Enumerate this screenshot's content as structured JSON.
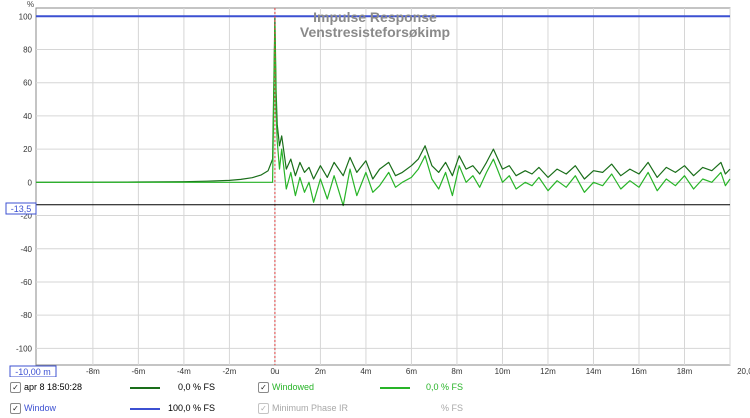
{
  "chart_data": {
    "type": "line",
    "title": "Impulse Response",
    "subtitle": "Venstresisteforsøkimp",
    "ylabel": "%",
    "xlabel": "s",
    "xlim": [
      -0.0105,
      0.02
    ],
    "ylim": [
      -110,
      105
    ],
    "grid": true,
    "x_ticks": [
      -0.008,
      -0.006,
      -0.004,
      -0.002,
      0,
      0.002,
      0.004,
      0.006,
      0.008,
      0.01,
      0.012,
      0.014,
      0.016,
      0.018,
      0.02
    ],
    "x_tick_labels": [
      "-8m",
      "-6m",
      "-4m",
      "-2m",
      "0u",
      "2m",
      "4m",
      "6m",
      "8m",
      "10m",
      "12m",
      "14m",
      "16m",
      "18m",
      "20,0 s"
    ],
    "y_ticks": [
      100,
      80,
      60,
      40,
      20,
      0,
      -20,
      -40,
      -60,
      -80,
      -100
    ],
    "y_tick_labels": [
      "100",
      "80",
      "60",
      "40",
      "20",
      "0",
      "-20",
      "-40",
      "-60",
      "-80",
      "-100"
    ],
    "cursor_x": 0,
    "x_readout": "-10,00 m",
    "y_readout": "-13,5",
    "y_readout_value": -13.5,
    "series": [
      {
        "name": "apr 8 18:50:28",
        "color": "#1a6e1a",
        "x": [
          -0.0105,
          -0.008,
          -0.006,
          -0.004,
          -0.003,
          -0.002,
          -0.0015,
          -0.001,
          -0.0006,
          -0.0003,
          -0.0001,
          0,
          5e-05,
          0.0001,
          0.0002,
          0.0003,
          0.0005,
          0.0007,
          0.0009,
          0.0011,
          0.0013,
          0.0015,
          0.0017,
          0.002,
          0.0023,
          0.0026,
          0.003,
          0.0033,
          0.0036,
          0.004,
          0.0043,
          0.0046,
          0.005,
          0.0053,
          0.0056,
          0.006,
          0.0063,
          0.0066,
          0.0069,
          0.0072,
          0.0075,
          0.0078,
          0.0081,
          0.0084,
          0.0087,
          0.009,
          0.0093,
          0.0096,
          0.01,
          0.0103,
          0.0106,
          0.011,
          0.0113,
          0.0116,
          0.012,
          0.0124,
          0.0128,
          0.0132,
          0.0136,
          0.014,
          0.0144,
          0.0148,
          0.0152,
          0.0156,
          0.016,
          0.0164,
          0.0168,
          0.0172,
          0.0176,
          0.018,
          0.0184,
          0.0188,
          0.0192,
          0.0196,
          0.0198,
          0.02
        ],
        "y": [
          0,
          0.1,
          0.2,
          0.4,
          0.7,
          1.2,
          1.8,
          2.8,
          4.5,
          7,
          14,
          99,
          55,
          35,
          22,
          28,
          8,
          14,
          4,
          12,
          6,
          9,
          2,
          10,
          3,
          12,
          4,
          15,
          6,
          13,
          2,
          8,
          12,
          4,
          6,
          10,
          14,
          22,
          10,
          6,
          12,
          4,
          16,
          8,
          10,
          5,
          12,
          20,
          8,
          10,
          4,
          7,
          5,
          9,
          3,
          8,
          5,
          10,
          2,
          7,
          6,
          11,
          4,
          8,
          5,
          12,
          3,
          9,
          6,
          10,
          4,
          9,
          7,
          12,
          5,
          8
        ]
      },
      {
        "name": "Windowed",
        "color": "#28b428",
        "x": [
          -0.0105,
          -0.008,
          -0.006,
          -0.004,
          -0.003,
          -0.002,
          -0.0015,
          -0.001,
          -0.0006,
          -0.0003,
          -0.0001,
          0,
          5e-05,
          0.0001,
          0.0002,
          0.0003,
          0.0005,
          0.0007,
          0.0009,
          0.0011,
          0.0013,
          0.0015,
          0.0017,
          0.002,
          0.0023,
          0.0026,
          0.003,
          0.0033,
          0.0036,
          0.004,
          0.0043,
          0.0046,
          0.005,
          0.0053,
          0.0056,
          0.006,
          0.0063,
          0.0066,
          0.0069,
          0.0072,
          0.0075,
          0.0078,
          0.0081,
          0.0084,
          0.0087,
          0.009,
          0.0093,
          0.0096,
          0.01,
          0.0103,
          0.0106,
          0.011,
          0.0113,
          0.0116,
          0.012,
          0.0124,
          0.0128,
          0.0132,
          0.0136,
          0.014,
          0.0144,
          0.0148,
          0.0152,
          0.0156,
          0.016,
          0.0164,
          0.0168,
          0.0172,
          0.0176,
          0.018,
          0.0184,
          0.0188,
          0.0192,
          0.0196,
          0.0198,
          0.02
        ],
        "y": [
          0,
          0,
          0,
          0,
          0,
          0,
          0,
          0,
          0,
          0,
          0,
          95,
          42,
          25,
          8,
          20,
          -4,
          6,
          -8,
          3,
          -6,
          0,
          -12,
          2,
          -10,
          4,
          -14,
          8,
          -8,
          6,
          -6,
          -2,
          6,
          -3,
          0,
          3,
          8,
          16,
          2,
          -4,
          6,
          -8,
          10,
          0,
          4,
          -3,
          6,
          14,
          0,
          4,
          -4,
          0,
          -2,
          3,
          -5,
          1,
          -3,
          4,
          -6,
          0,
          -2,
          5,
          -4,
          1,
          -3,
          6,
          -5,
          2,
          -2,
          4,
          -4,
          2,
          0,
          6,
          -2,
          2
        ]
      }
    ]
  },
  "legend": {
    "row1": [
      {
        "label": "apr 8 18:50:28",
        "value": "0,0 % FS",
        "color": "#1a6e1a",
        "checked": "✓"
      },
      {
        "label": "Windowed",
        "value": "0,0 % FS",
        "color": "#28b428",
        "checked": "✓"
      }
    ],
    "row2": [
      {
        "label": "Window",
        "value": "100,0 % FS",
        "color": "#3c50d2",
        "checked": "✓"
      },
      {
        "label": "Minimum Phase IR",
        "value": "% FS",
        "color": "#a8a8a8",
        "checked": "✓"
      }
    ]
  },
  "colors": {
    "window": "#3c50d2",
    "cursor": "#e04040",
    "title": "#8a8a8a",
    "grid": "#d6d6d6"
  }
}
